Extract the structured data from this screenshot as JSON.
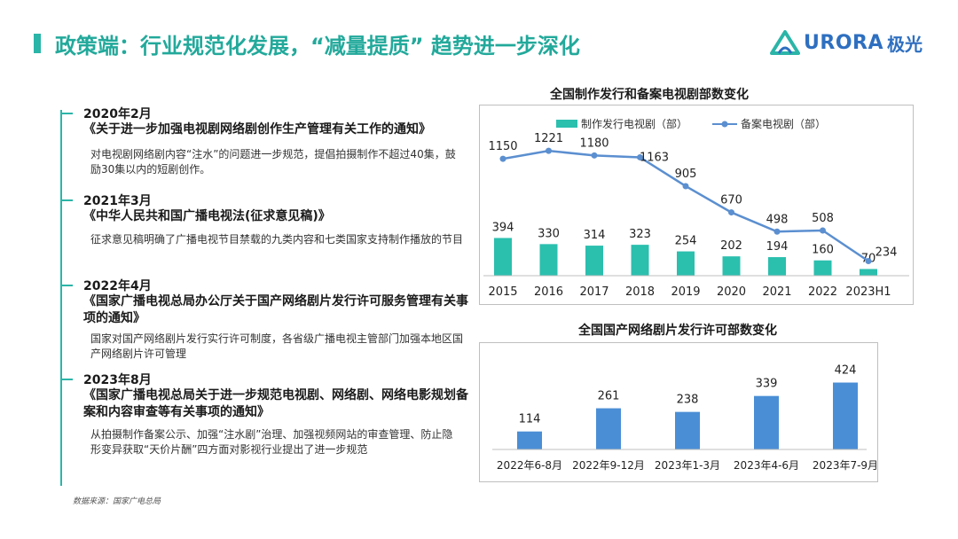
{
  "header": {
    "title": "政策端：行业规范化发展，“减量提质” 趋势进一步深化",
    "logo_text": "URORA",
    "logo_cn": "极光"
  },
  "timeline": [
    {
      "date": "2020年2月",
      "document": "《关于进一步加强电视剧网络剧创作生产管理有关工作的通知》",
      "description": "对电视剧网络剧内容“注水”的问题进一步规范，提倡拍摄制作不超过40集，鼓励30集以内的短剧创作。"
    },
    {
      "date": "2021年3月",
      "document": "《中华人民共和国广播电视法(征求意见稿)》",
      "description": "征求意见稿明确了广播电视节目禁载的九类内容和七类国家支持制作播放的节目"
    },
    {
      "date": "2022年4月",
      "document": "《国家广播电视总局办公厅关于国产网络剧片发行许可服务管理有关事项的通知》",
      "description": "国家对国产网络剧片发行实行许可制度，各省级广播电视主管部门加强本地区国产网络剧片许可管理"
    },
    {
      "date": "2023年8月",
      "document": "《国家广播电视总局关于进一步规范电视剧、网络剧、网络电影规划备案和内容审查等有关事项的通知》",
      "description": "从拍摄制作备案公示、加强“注水剧”治理、加强视频网站的审查管理、防止隐形变异获取“天价片酬”四方面对影视行业提出了进一步规范"
    }
  ],
  "source": "数据来源：国家广电总局",
  "chart_data": [
    {
      "type": "bar+line",
      "title": "全国制作发行和备案电视剧部数变化",
      "categories": [
        "2015",
        "2016",
        "2017",
        "2018",
        "2019",
        "2020",
        "2021",
        "2022",
        "2023H1"
      ],
      "series": [
        {
          "name": "制作发行电视剧（部）",
          "type": "bar",
          "color": "#2bbfae",
          "values": [
            394,
            330,
            314,
            323,
            254,
            202,
            194,
            160,
            70
          ]
        },
        {
          "name": "备案电视剧（部）",
          "type": "line",
          "color": "#5b8fd0",
          "values": [
            1150,
            1221,
            1180,
            1163,
            905,
            670,
            498,
            508,
            234
          ]
        }
      ],
      "legend": "top"
    },
    {
      "type": "bar",
      "title": "全国国产网络剧片发行许可部数变化",
      "categories": [
        "2022年6-8月",
        "2022年9-12月",
        "2023年1-3月",
        "2023年4-6月",
        "2023年7-9月"
      ],
      "values": [
        114,
        261,
        238,
        339,
        424
      ],
      "color": "#4a8ed6"
    }
  ]
}
